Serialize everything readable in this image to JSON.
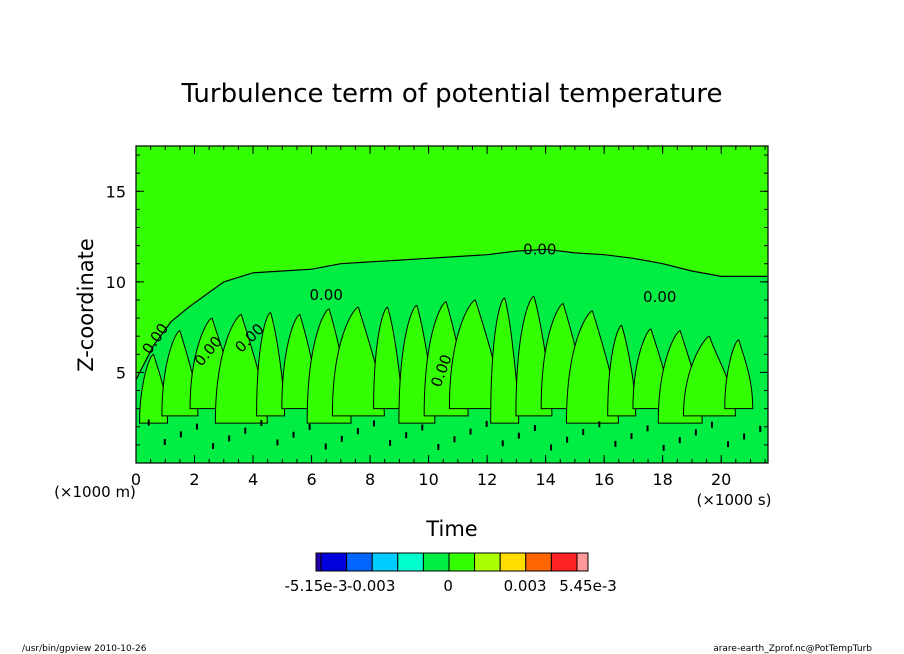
{
  "chart_data": {
    "type": "contour",
    "title": "Turbulence term of potential temperature",
    "xlabel": "Time",
    "ylabel": "Z-coordinate",
    "x_unit": "(×1000 s)",
    "y_unit": "(×1000 m)",
    "xlim": [
      0,
      21.6
    ],
    "ylim": [
      0,
      17.5
    ],
    "x_ticks": [
      "0",
      "2",
      "4",
      "6",
      "8",
      "10",
      "12",
      "14",
      "16",
      "18",
      "20"
    ],
    "y_ticks": [
      "5",
      "10",
      "15"
    ],
    "x_tick_values": [
      0,
      2,
      4,
      6,
      8,
      10,
      12,
      14,
      16,
      18,
      20
    ],
    "y_tick_values": [
      5,
      10,
      15
    ],
    "contour_labels": [
      "0.00",
      "0.00",
      "0.00",
      "0.00",
      "0.00",
      "0.00",
      "0.00"
    ],
    "background_field_color": "#33ff00",
    "inner_field_color": "#00ee44",
    "colorbar": {
      "colors": [
        "#2200aa",
        "#0000dd",
        "#0066ff",
        "#00ccff",
        "#00ffcc",
        "#00ee44",
        "#33ff00",
        "#aaff00",
        "#ffdd00",
        "#ff6600",
        "#ff2222",
        "#ff9999"
      ],
      "labels": [
        "-5.15e-3",
        "-0.003",
        "0",
        "0.003",
        "5.45e-3"
      ],
      "label_values": [
        -0.00515,
        -0.003,
        0,
        0.003,
        0.00545
      ]
    },
    "envelope": {
      "x": [
        0.0,
        0.6,
        1.2,
        1.8,
        2.4,
        3.0,
        3.6,
        4.0,
        5.0,
        6.0,
        7.0,
        8.0,
        9.0,
        10.0,
        11.0,
        12.0,
        13.0,
        14.0,
        15.0,
        16.0,
        17.0,
        18.0,
        19.0,
        20.0,
        21.6
      ],
      "y": [
        4.6,
        6.5,
        7.8,
        8.6,
        9.3,
        10.0,
        10.3,
        10.5,
        10.6,
        10.7,
        11.0,
        11.1,
        11.2,
        11.3,
        11.4,
        11.5,
        11.7,
        11.8,
        11.6,
        11.5,
        11.3,
        11.0,
        10.6,
        10.3,
        10.3
      ]
    }
  },
  "footer": {
    "left": "/usr/bin/gpview   2010-10-26",
    "right": "arare-earth_Zprof.nc@PotTempTurb"
  }
}
